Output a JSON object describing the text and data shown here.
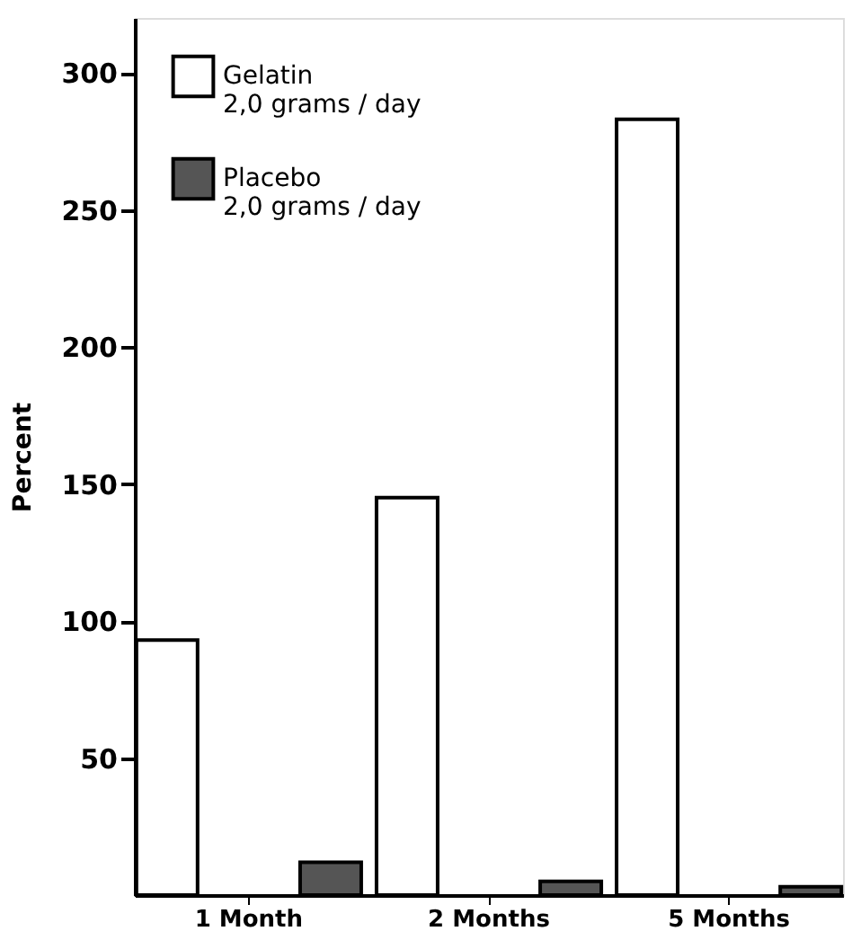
{
  "chart_data": {
    "type": "bar",
    "ylabel": "Percent",
    "categories": [
      "1 Month",
      "2 Months",
      "5 Months"
    ],
    "series": [
      {
        "name": "Gelatin\n2,0 grams / day",
        "color": "#ffffff",
        "values": [
          93,
          145,
          283
        ]
      },
      {
        "name": "Placebo\n2,0 grams / day",
        "color": "#555555",
        "values": [
          12,
          5,
          3
        ]
      }
    ],
    "ylim": [
      0,
      320
    ],
    "yticks": [
      50,
      100,
      150,
      200,
      250,
      300
    ],
    "grid": false,
    "legend": "top left"
  }
}
